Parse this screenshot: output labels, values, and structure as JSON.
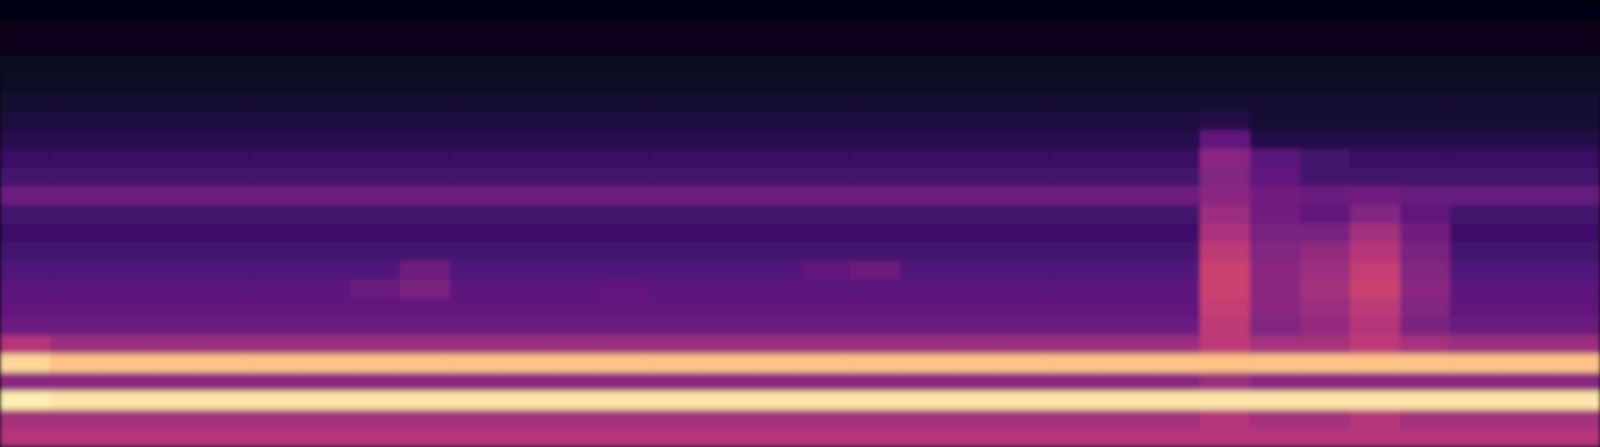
{
  "chart_data": {
    "type": "heatmap",
    "tick_labels": false,
    "zlim": [
      0,
      100
    ],
    "cells": [
      [
        3,
        3,
        3,
        3,
        3,
        3,
        3,
        3,
        3,
        3,
        3,
        3,
        3,
        3,
        3,
        3,
        3,
        3,
        3,
        3,
        3,
        3,
        3,
        3,
        3,
        3,
        3,
        3,
        3,
        3,
        3,
        3
      ],
      [
        4,
        4,
        4,
        4,
        4,
        4,
        4,
        4,
        4,
        4,
        4,
        4,
        4,
        4,
        4,
        4,
        4,
        4,
        4,
        4,
        4,
        4,
        4,
        4,
        4,
        4,
        4,
        4,
        4,
        4,
        4,
        4
      ],
      [
        5,
        5,
        5,
        5,
        5,
        5,
        5,
        5,
        5,
        5,
        5,
        5,
        5,
        5,
        5,
        5,
        5,
        5,
        5,
        5,
        5,
        5,
        5,
        5,
        5,
        5,
        5,
        5,
        5,
        5,
        5,
        5
      ],
      [
        6,
        6,
        6,
        6,
        6,
        6,
        6,
        6,
        6,
        6,
        6,
        6,
        6,
        6,
        6,
        6,
        6,
        6,
        6,
        6,
        6,
        6,
        6,
        6,
        6,
        6,
        6,
        6,
        6,
        6,
        6,
        6
      ],
      [
        7,
        7,
        7,
        7,
        7,
        7,
        7,
        7,
        7,
        7,
        7,
        7,
        7,
        7,
        7,
        7,
        7,
        7,
        7,
        7,
        7,
        7,
        7,
        7,
        7,
        7,
        7,
        7,
        7,
        7,
        7,
        7
      ],
      [
        9,
        9,
        9,
        9,
        9,
        9,
        9,
        9,
        9,
        9,
        9,
        9,
        9,
        9,
        9,
        9,
        9,
        9,
        9,
        9,
        9,
        9,
        9,
        9,
        9,
        9,
        9,
        9,
        9,
        9,
        9,
        9
      ],
      [
        12,
        12,
        12,
        12,
        12,
        12,
        12,
        12,
        12,
        12,
        12,
        12,
        12,
        12,
        12,
        12,
        12,
        12,
        12,
        12,
        12,
        12,
        12,
        12,
        14,
        10,
        10,
        10,
        10,
        10,
        10,
        10
      ],
      [
        15,
        15,
        15,
        15,
        15,
        15,
        15,
        15,
        15,
        15,
        15,
        15,
        15,
        15,
        15,
        15,
        15,
        15,
        15,
        15,
        15,
        15,
        15,
        15,
        30,
        14,
        14,
        14,
        14,
        14,
        14,
        14
      ],
      [
        20,
        20,
        20,
        20,
        20,
        20,
        20,
        20,
        20,
        20,
        20,
        20,
        20,
        20,
        20,
        20,
        20,
        20,
        20,
        20,
        20,
        20,
        20,
        20,
        40,
        28,
        22,
        20,
        20,
        20,
        20,
        20
      ],
      [
        22,
        22,
        22,
        22,
        22,
        22,
        22,
        22,
        22,
        22,
        22,
        22,
        22,
        22,
        22,
        22,
        22,
        22,
        22,
        22,
        22,
        22,
        22,
        22,
        38,
        30,
        22,
        22,
        22,
        22,
        22,
        22
      ],
      [
        33,
        33,
        33,
        33,
        33,
        33,
        33,
        33,
        33,
        33,
        33,
        33,
        33,
        33,
        33,
        33,
        33,
        33,
        33,
        33,
        33,
        33,
        33,
        33,
        40,
        34,
        32,
        34,
        31,
        31,
        31,
        31
      ],
      [
        22,
        22,
        22,
        22,
        22,
        22,
        22,
        22,
        22,
        22,
        22,
        22,
        22,
        22,
        22,
        22,
        22,
        22,
        22,
        22,
        22,
        22,
        22,
        22,
        44,
        34,
        30,
        38,
        30,
        22,
        22,
        22
      ],
      [
        21,
        21,
        21,
        21,
        21,
        21,
        21,
        21,
        21,
        21,
        21,
        21,
        21,
        21,
        21,
        21,
        21,
        21,
        21,
        21,
        21,
        21,
        21,
        21,
        48,
        36,
        36,
        46,
        34,
        21,
        21,
        21
      ],
      [
        22,
        22,
        22,
        22,
        22,
        22,
        22,
        22,
        22,
        22,
        22,
        22,
        22,
        22,
        22,
        22,
        22,
        22,
        22,
        22,
        22,
        22,
        22,
        22,
        52,
        38,
        42,
        50,
        36,
        22,
        22,
        22
      ],
      [
        25,
        25,
        25,
        25,
        25,
        25,
        25,
        25,
        33,
        25,
        25,
        25,
        25,
        25,
        25,
        25,
        30,
        32,
        25,
        25,
        25,
        25,
        25,
        25,
        56,
        40,
        44,
        54,
        38,
        25,
        25,
        25
      ],
      [
        28,
        28,
        28,
        28,
        28,
        28,
        28,
        32,
        36,
        28,
        28,
        28,
        30,
        28,
        28,
        28,
        28,
        28,
        28,
        28,
        28,
        28,
        28,
        28,
        56,
        40,
        46,
        56,
        40,
        28,
        28,
        28
      ],
      [
        30,
        30,
        30,
        30,
        30,
        30,
        30,
        30,
        30,
        30,
        30,
        30,
        30,
        30,
        30,
        30,
        30,
        30,
        30,
        30,
        30,
        30,
        30,
        30,
        54,
        40,
        44,
        52,
        38,
        30,
        30,
        30
      ],
      [
        32,
        32,
        32,
        32,
        32,
        32,
        32,
        32,
        32,
        32,
        32,
        32,
        32,
        32,
        32,
        32,
        32,
        32,
        32,
        32,
        32,
        32,
        32,
        32,
        52,
        38,
        42,
        50,
        36,
        32,
        32,
        32
      ],
      [
        50,
        44,
        44,
        44,
        44,
        44,
        44,
        44,
        44,
        44,
        44,
        44,
        44,
        44,
        44,
        44,
        44,
        44,
        44,
        44,
        44,
        44,
        44,
        44,
        52,
        46,
        46,
        52,
        46,
        44,
        44,
        44
      ],
      [
        92,
        88,
        88,
        88,
        88,
        88,
        88,
        88,
        88,
        88,
        88,
        88,
        88,
        88,
        88,
        88,
        88,
        88,
        88,
        88,
        88,
        88,
        88,
        88,
        88,
        88,
        88,
        88,
        88,
        88,
        88,
        88
      ],
      [
        40,
        40,
        40,
        40,
        40,
        40,
        40,
        40,
        40,
        40,
        40,
        40,
        40,
        40,
        40,
        40,
        40,
        40,
        40,
        40,
        40,
        40,
        40,
        40,
        44,
        40,
        40,
        40,
        40,
        40,
        40,
        40
      ],
      [
        97,
        95,
        95,
        95,
        95,
        95,
        95,
        95,
        95,
        95,
        95,
        95,
        95,
        95,
        95,
        95,
        95,
        95,
        95,
        95,
        95,
        95,
        95,
        95,
        95,
        95,
        95,
        95,
        95,
        95,
        95,
        95
      ],
      [
        46,
        46,
        46,
        46,
        46,
        46,
        46,
        46,
        46,
        46,
        46,
        46,
        46,
        46,
        46,
        46,
        46,
        46,
        46,
        46,
        46,
        46,
        46,
        46,
        50,
        46,
        46,
        50,
        46,
        46,
        46,
        46
      ],
      [
        50,
        50,
        50,
        50,
        50,
        50,
        50,
        50,
        50,
        50,
        50,
        50,
        50,
        50,
        50,
        50,
        50,
        50,
        50,
        50,
        50,
        50,
        50,
        50,
        50,
        50,
        50,
        50,
        50,
        50,
        50,
        50
      ]
    ]
  }
}
